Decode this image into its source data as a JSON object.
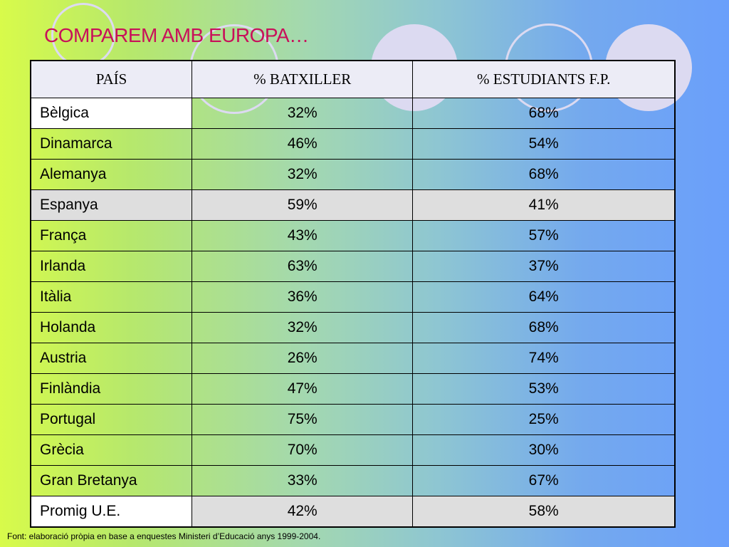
{
  "title": "COMPAREM AMB EUROPA…",
  "colors": {
    "title": "#c8105a",
    "circle": "#dcdaf1",
    "highlight_row": "#dedede",
    "header_bg": "#ececf6"
  },
  "table": {
    "headers": [
      "PAÍS",
      "% BATXILLER",
      "% ESTUDIANTS F.P."
    ],
    "rows": [
      {
        "country": "Bèlgica",
        "batxiller": "32%",
        "fp": "68%"
      },
      {
        "country": "Dinamarca",
        "batxiller": "46%",
        "fp": "54%"
      },
      {
        "country": "Alemanya",
        "batxiller": "32%",
        "fp": "68%"
      },
      {
        "country": "Espanya",
        "batxiller": "59%",
        "fp": "41%"
      },
      {
        "country": "França",
        "batxiller": "43%",
        "fp": "57%"
      },
      {
        "country": "Irlanda",
        "batxiller": "63%",
        "fp": "37%"
      },
      {
        "country": "Itàlia",
        "batxiller": "36%",
        "fp": "64%"
      },
      {
        "country": "Holanda",
        "batxiller": "32%",
        "fp": "68%"
      },
      {
        "country": "Austria",
        "batxiller": "26%",
        "fp": "74%"
      },
      {
        "country": "Finlàndia",
        "batxiller": "47%",
        "fp": "53%"
      },
      {
        "country": "Portugal",
        "batxiller": "75%",
        "fp": "25%"
      },
      {
        "country": "Grècia",
        "batxiller": "70%",
        "fp": "30%"
      },
      {
        "country": "Gran Bretanya",
        "batxiller": "33%",
        "fp": "67%"
      },
      {
        "country": "Promig U.E.",
        "batxiller": "42%",
        "fp": "58%"
      }
    ]
  },
  "source": "Font: elaboració pròpia en base a enquestes Ministeri d’Educació anys 1999-2004."
}
